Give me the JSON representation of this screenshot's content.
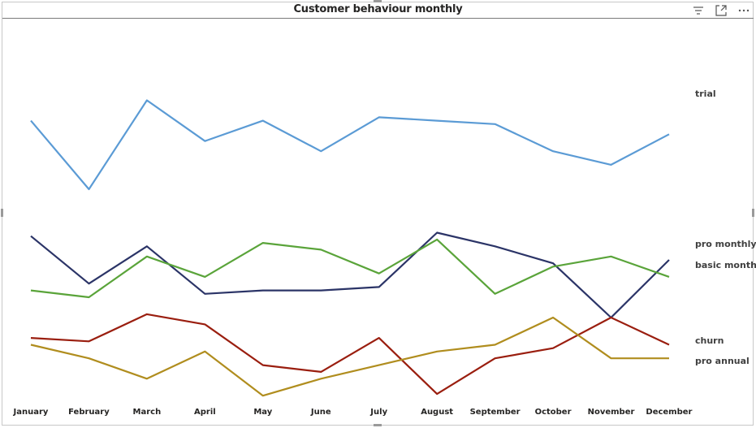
{
  "title": "Customer behaviour monthly",
  "toolbar": {
    "icons": [
      "filter-icon",
      "focus-mode-icon",
      "more-options-icon"
    ]
  },
  "chart_data": {
    "type": "line",
    "title": "Customer behaviour monthly",
    "xlabel": "",
    "ylabel": "",
    "categories": [
      "January",
      "February",
      "March",
      "April",
      "May",
      "June",
      "July",
      "August",
      "September",
      "October",
      "November",
      "December"
    ],
    "ylim": [
      0,
      100
    ],
    "grid": false,
    "legend": "inline-right-labels",
    "series": [
      {
        "name": "trial",
        "color": "#5b9bd5",
        "values": [
          80.0,
          59.8,
          86.0,
          74.0,
          80.0,
          71.0,
          81.0,
          80.0,
          79.0,
          71.0,
          67.0,
          76.0
        ]
      },
      {
        "name": "pro monthly",
        "color": "#2b3467",
        "values": [
          46.0,
          32.0,
          43.0,
          29.0,
          30.0,
          30.0,
          31.0,
          47.0,
          43.0,
          38.0,
          22.0,
          39.0
        ]
      },
      {
        "name": "basic monthly",
        "color": "#5aa43a",
        "values": [
          30.0,
          28.0,
          40.0,
          34.0,
          44.0,
          42.0,
          35.0,
          45.0,
          29.0,
          37.0,
          40.0,
          34.0
        ]
      },
      {
        "name": "churn",
        "color": "#9a1e0f",
        "values": [
          16.0,
          15.0,
          23.0,
          20.0,
          8.0,
          6.0,
          16.0,
          -0.5,
          10.0,
          13.0,
          22.0,
          14.0
        ]
      },
      {
        "name": "pro annual",
        "color": "#b08d1e",
        "values": [
          14.0,
          10.0,
          4.0,
          12.0,
          -1.0,
          4.0,
          8.0,
          12.0,
          14.0,
          22.0,
          10.0,
          10.0
        ]
      }
    ]
  }
}
